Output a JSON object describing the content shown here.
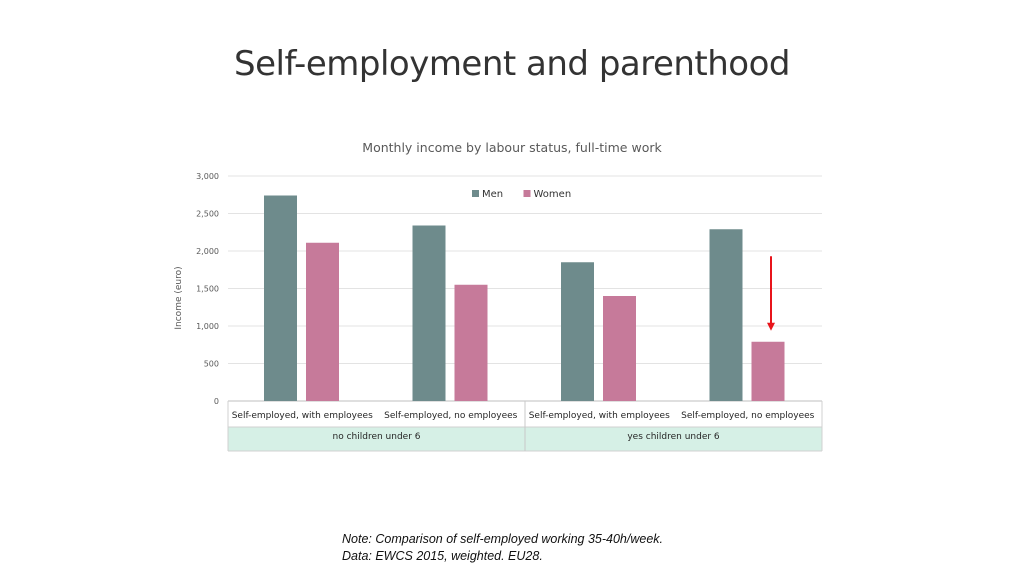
{
  "slide": {
    "title": "Self-employment and parenthood",
    "note_line1": "Note: Comparison of self-employed working 35-40h/week.",
    "note_line2": "Data: EWCS 2015, weighted. EU28."
  },
  "chart_data": {
    "type": "bar",
    "title": "Monthly income by labour status, full-time work",
    "ylabel": "Income (euro)",
    "ylim": [
      0,
      3000
    ],
    "yticks": [
      "0",
      "500",
      "1,000",
      "1,500",
      "2,000",
      "2,500",
      "3,000"
    ],
    "grid": true,
    "legend_position": "top-right",
    "categories": [
      "Self-employed, with employees",
      "Self-employed, no employees",
      "Self-employed, with employees",
      "Self-employed, no employees"
    ],
    "groups": [
      {
        "label": "no children under 6",
        "span": [
          0,
          1
        ]
      },
      {
        "label": "yes children under 6",
        "span": [
          2,
          3
        ]
      }
    ],
    "series": [
      {
        "name": "Men",
        "color": "#6e8b8c",
        "values": [
          2740,
          2340,
          1850,
          2290
        ]
      },
      {
        "name": "Women",
        "color": "#c67a9a",
        "values": [
          2110,
          1550,
          1400,
          790
        ]
      }
    ],
    "annotations": [
      {
        "type": "arrow",
        "color": "#e8141b",
        "category_index": 3,
        "series": "Women",
        "from_value": 1930,
        "to_value": 950
      }
    ]
  }
}
